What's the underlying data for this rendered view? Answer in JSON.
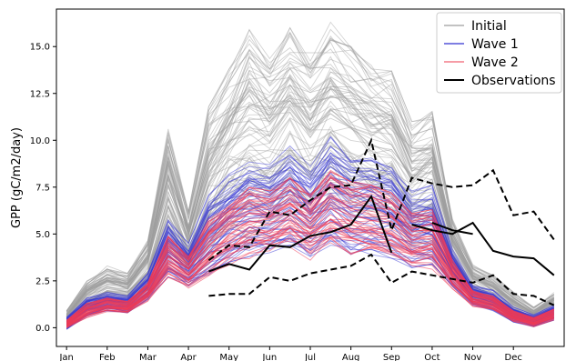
{
  "chart_data": {
    "type": "line",
    "title": "",
    "xlabel": "",
    "ylabel": "GPP (gC/m2/day)",
    "xlim": [
      0.5,
      25.5
    ],
    "ylim": [
      -1.0,
      17.0
    ],
    "yticks": [
      0.0,
      2.5,
      5.0,
      7.5,
      10.0,
      12.5,
      15.0
    ],
    "ytick_labels": [
      "0.0",
      "2.5",
      "5.0",
      "7.5",
      "10.0",
      "12.5",
      "15.0"
    ],
    "xtick_positions": [
      1,
      3,
      5,
      7,
      9,
      11,
      13,
      15,
      17,
      19,
      21,
      23
    ],
    "xtick_labels": [
      "Jan",
      "Feb",
      "Mar",
      "Apr",
      "May",
      "Jun",
      "Jul",
      "Aug",
      "Sep",
      "Oct",
      "Nov",
      "Dec"
    ],
    "legend_position": "top-right",
    "legend": [
      {
        "label": "Initial",
        "color": "#9e9e9e",
        "width": 1.2
      },
      {
        "label": "Wave 1",
        "color": "#3030d0",
        "width": 1.2
      },
      {
        "label": "Wave 2",
        "color": "#f06070",
        "width": 1.2
      },
      {
        "label": "Observations",
        "color": "#000000",
        "width": 2
      }
    ],
    "ensembles": [
      {
        "name": "Initial",
        "color": "#9e9e9e",
        "opacity": 0.45,
        "x": [
          1,
          2,
          3,
          4,
          5,
          6,
          7,
          8,
          9,
          10,
          11,
          12,
          13,
          14,
          15,
          16,
          17,
          18,
          19,
          20,
          21,
          22,
          23,
          24,
          25
        ],
        "low": [
          0.1,
          0.8,
          1.2,
          1.2,
          2.0,
          4.0,
          2.8,
          3.4,
          4.6,
          4.6,
          5.2,
          6.2,
          5.0,
          6.0,
          5.4,
          5.2,
          4.9,
          4.0,
          4.3,
          2.7,
          1.5,
          1.0,
          0.4,
          0.1,
          0.6
        ],
        "high": [
          0.9,
          2.5,
          3.3,
          2.9,
          4.7,
          10.6,
          6.2,
          11.8,
          13.8,
          15.9,
          14.5,
          16.0,
          14.8,
          16.3,
          15.0,
          14.0,
          13.7,
          11.0,
          11.6,
          5.8,
          3.4,
          2.8,
          1.9,
          1.1,
          1.9
        ],
        "count": 80
      },
      {
        "name": "Wave 1",
        "color": "#3a3ad4",
        "opacity": 0.5,
        "x": [
          1,
          2,
          3,
          4,
          5,
          6,
          7,
          8,
          9,
          10,
          11,
          12,
          13,
          14,
          15,
          16,
          17,
          18,
          19,
          20,
          21,
          22,
          23,
          24,
          25
        ],
        "low": [
          -0.1,
          0.6,
          0.9,
          0.8,
          1.5,
          2.7,
          2.2,
          2.7,
          3.5,
          3.8,
          4.0,
          4.4,
          3.8,
          4.4,
          3.9,
          3.9,
          3.7,
          3.2,
          3.3,
          2.2,
          1.2,
          0.9,
          0.3,
          0.05,
          0.4
        ],
        "high": [
          0.6,
          1.6,
          1.9,
          1.7,
          2.9,
          5.9,
          4.5,
          7.1,
          8.2,
          9.1,
          8.7,
          9.7,
          8.6,
          10.2,
          9.3,
          9.2,
          8.8,
          7.3,
          7.6,
          4.2,
          2.3,
          2.0,
          1.1,
          0.7,
          1.2
        ],
        "count": 55
      },
      {
        "name": "Wave 2",
        "color": "#ee3a55",
        "opacity": 0.55,
        "x": [
          1,
          2,
          3,
          4,
          5,
          6,
          7,
          8,
          9,
          10,
          11,
          12,
          13,
          14,
          15,
          16,
          17,
          18,
          19,
          20,
          21,
          22,
          23,
          24,
          25
        ],
        "low": [
          -0.05,
          0.5,
          0.85,
          0.75,
          1.4,
          2.6,
          2.1,
          2.6,
          3.3,
          3.6,
          3.8,
          4.2,
          3.6,
          4.2,
          3.8,
          3.7,
          3.5,
          3.0,
          3.1,
          2.0,
          1.1,
          0.85,
          0.3,
          0.05,
          0.4
        ],
        "high": [
          0.4,
          1.3,
          1.6,
          1.4,
          2.4,
          4.9,
          3.8,
          5.8,
          6.6,
          7.5,
          7.3,
          8.0,
          7.1,
          8.4,
          7.8,
          7.6,
          7.2,
          6.1,
          6.3,
          3.6,
          2.0,
          1.7,
          0.9,
          0.55,
          1.0
        ],
        "count": 45
      }
    ],
    "observations": {
      "name": "Observations",
      "mean": {
        "x": [
          8,
          9,
          10,
          11,
          12,
          13,
          14,
          15,
          16,
          17,
          18,
          19,
          20,
          21
        ],
        "y": [
          3.0,
          3.4,
          3.1,
          4.4,
          4.3,
          4.9,
          5.1,
          5.5,
          7.0,
          4.0,
          null,
          5.6,
          5.2,
          5.0
        ]
      },
      "mean_tail": {
        "x": [
          18.0,
          19.0,
          20.0,
          21.0,
          22.0,
          23.0,
          24.0,
          25.0
        ],
        "y": [
          5.5,
          5.2,
          5.0,
          5.6,
          4.1,
          3.8,
          3.7,
          2.8
        ]
      },
      "upper": {
        "x": [
          8,
          9,
          10,
          11,
          12,
          13,
          14,
          15,
          16,
          17,
          18,
          19,
          20,
          21,
          22,
          23,
          24,
          25
        ],
        "y": [
          3.6,
          4.4,
          4.3,
          6.2,
          6.0,
          6.8,
          7.5,
          7.6,
          10.0,
          5.2,
          8.0,
          7.7,
          7.5,
          7.6,
          8.4,
          6.0,
          6.2,
          4.7
        ]
      },
      "lower": {
        "x": [
          8,
          9,
          10,
          11,
          12,
          13,
          14,
          15,
          16,
          17,
          18,
          19,
          20,
          21,
          22,
          23,
          24,
          25
        ],
        "y": [
          1.7,
          1.8,
          1.8,
          2.7,
          2.5,
          2.9,
          3.1,
          3.3,
          3.9,
          2.4,
          3.0,
          2.8,
          2.6,
          2.4,
          2.8,
          1.8,
          1.7,
          1.2
        ]
      }
    }
  }
}
